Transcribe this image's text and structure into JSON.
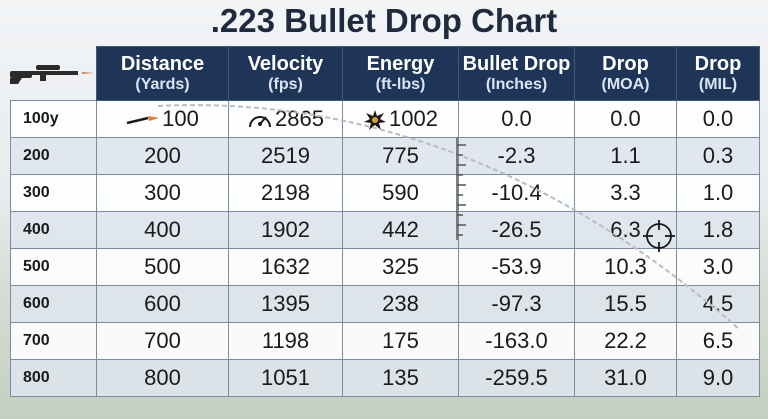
{
  "title": ".223 Bullet Drop Chart",
  "columns": [
    {
      "name": "Distance",
      "unit": "(Yards)"
    },
    {
      "name": "Velocity",
      "unit": "(fps)"
    },
    {
      "name": "Energy",
      "unit": "(ft-lbs)"
    },
    {
      "name": "Bullet Drop",
      "unit": "(Inches)"
    },
    {
      "name": "Drop",
      "unit": "(MOA)"
    },
    {
      "name": "Drop",
      "unit": "(MIL)"
    }
  ],
  "rows": [
    {
      "label": "100y",
      "distance": "100",
      "velocity": "2865",
      "energy": "1002",
      "drop_in": "0.0",
      "drop_moa": "0.0",
      "drop_mil": "0.0"
    },
    {
      "label": "200",
      "distance": "200",
      "velocity": "2519",
      "energy": "775",
      "drop_in": "-2.3",
      "drop_moa": "1.1",
      "drop_mil": "0.3"
    },
    {
      "label": "300",
      "distance": "300",
      "velocity": "2198",
      "energy": "590",
      "drop_in": "-10.4",
      "drop_moa": "3.3",
      "drop_mil": "1.0"
    },
    {
      "label": "400",
      "distance": "400",
      "velocity": "1902",
      "energy": "442",
      "drop_in": "-26.5",
      "drop_moa": "6.3",
      "drop_mil": "1.8"
    },
    {
      "label": "500",
      "distance": "500",
      "velocity": "1632",
      "energy": "325",
      "drop_in": "-53.9",
      "drop_moa": "10.3",
      "drop_mil": "3.0"
    },
    {
      "label": "600",
      "distance": "600",
      "velocity": "1395",
      "energy": "238",
      "drop_in": "-97.3",
      "drop_moa": "15.5",
      "drop_mil": "4.5"
    },
    {
      "label": "700",
      "distance": "700",
      "velocity": "1198",
      "energy": "175",
      "drop_in": "-163.0",
      "drop_moa": "22.2",
      "drop_mil": "6.5"
    },
    {
      "label": "800",
      "distance": "800",
      "velocity": "1051",
      "energy": "135",
      "drop_in": "-259.5",
      "drop_moa": "31.0",
      "drop_mil": "9.0"
    }
  ],
  "icons": {
    "rifle": "rifle-icon",
    "bullet": "bullet-icon",
    "velocity": "speedometer-icon",
    "energy": "impact-icon",
    "ruler": "ruler-icon",
    "crosshair": "crosshair-icon"
  },
  "colors": {
    "header_bg": "#1f3558",
    "title": "#1f2a3d",
    "alt_row": "#dee5ee",
    "trajectory": "#b8bcc4"
  },
  "chart_data": {
    "type": "table",
    "title": ".223 Bullet Drop Chart",
    "columns": [
      "Distance (Yards)",
      "Velocity (fps)",
      "Energy (ft-lbs)",
      "Bullet Drop (Inches)",
      "Drop (MOA)",
      "Drop (MIL)"
    ],
    "x": [
      100,
      200,
      300,
      400,
      500,
      600,
      700,
      800
    ],
    "series": [
      {
        "name": "Velocity",
        "values": [
          2865,
          2519,
          2198,
          1902,
          1632,
          1395,
          1198,
          1051
        ]
      },
      {
        "name": "Energy",
        "values": [
          1002,
          775,
          590,
          442,
          325,
          238,
          175,
          135
        ]
      },
      {
        "name": "Bullet Drop",
        "values": [
          0.0,
          -2.3,
          -10.4,
          -26.5,
          -53.9,
          -97.3,
          -163.0,
          -259.5
        ]
      },
      {
        "name": "Drop",
        "values": [
          0.0,
          1.1,
          3.3,
          6.3,
          10.3,
          15.5,
          22.2,
          31.0
        ]
      },
      {
        "name": "Drop",
        "values": [
          0.0,
          0.3,
          1.0,
          1.8,
          3.0,
          4.5,
          6.5,
          9.0
        ]
      }
    ]
  }
}
